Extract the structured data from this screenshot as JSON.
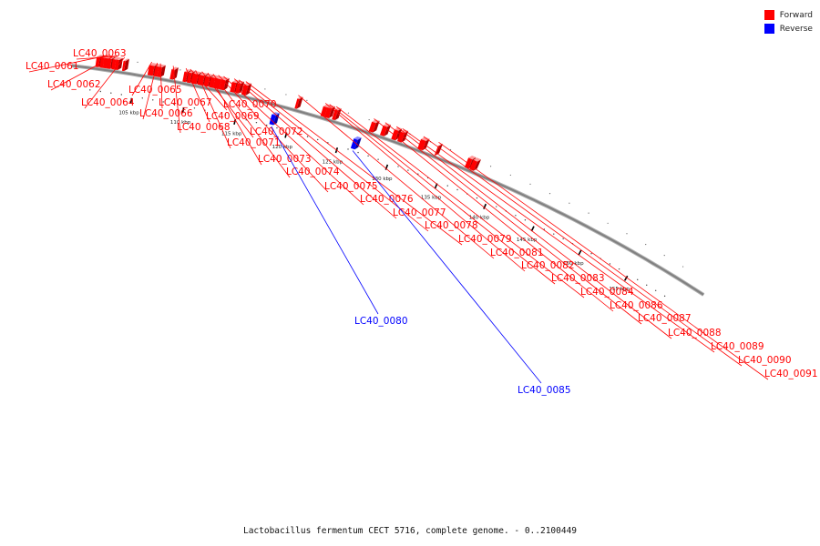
{
  "caption": "Lactobacillus fermentum CECT 5716, complete genome. - 0..2100449",
  "legend": [
    {
      "label": "Forward",
      "color": "#ff0000"
    },
    {
      "label": "Reverse",
      "color": "#0000ff"
    }
  ],
  "colors": {
    "forward": "#ff0000",
    "reverse": "#0000ff",
    "backbone": "#808080"
  },
  "tick_labels": [
    {
      "text": "105 kbp",
      "kbp": 105
    },
    {
      "text": "110 kbp",
      "kbp": 110
    },
    {
      "text": "115 kbp",
      "kbp": 115
    },
    {
      "text": "120 kbp",
      "kbp": 120
    },
    {
      "text": "125 kbp",
      "kbp": 125
    },
    {
      "text": "130 kbp",
      "kbp": 130
    },
    {
      "text": "135 kbp",
      "kbp": 135
    },
    {
      "text": "140 kbp",
      "kbp": 140
    },
    {
      "text": "145 kbp",
      "kbp": 145
    },
    {
      "text": "150 kbp",
      "kbp": 150
    },
    {
      "text": "155 kbp",
      "kbp": 155
    }
  ],
  "genes": [
    {
      "label": "LC40_0061",
      "strand": "forward",
      "start_kbp": 102.2,
      "end_kbp": 102.6
    },
    {
      "label": "LC40_0062",
      "strand": "forward",
      "start_kbp": 102.7,
      "end_kbp": 103.0
    },
    {
      "label": "LC40_0063",
      "strand": "forward",
      "start_kbp": 103.0,
      "end_kbp": 103.3
    },
    {
      "label": "LC40_0064",
      "strand": "forward",
      "start_kbp": 103.7,
      "end_kbp": 103.9
    },
    {
      "label": "LC40_0065",
      "strand": "forward",
      "start_kbp": 106.1,
      "end_kbp": 106.6
    },
    {
      "label": "LC40_0066",
      "strand": "forward",
      "start_kbp": 106.7,
      "end_kbp": 107.0
    },
    {
      "label": "LC40_0067",
      "strand": "forward",
      "start_kbp": 107.0,
      "end_kbp": 107.3
    },
    {
      "label": "LC40_0068",
      "strand": "forward",
      "start_kbp": 108.2,
      "end_kbp": 108.5
    },
    {
      "label": "LC40_0069",
      "strand": "forward",
      "start_kbp": 109.4,
      "end_kbp": 109.7
    },
    {
      "label": "LC40_0070",
      "strand": "forward",
      "start_kbp": 109.8,
      "end_kbp": 110.1
    },
    {
      "label": "LC40_0071",
      "strand": "forward",
      "start_kbp": 110.2,
      "end_kbp": 110.7
    },
    {
      "label": "LC40_0072",
      "strand": "forward",
      "start_kbp": 110.8,
      "end_kbp": 111.3
    },
    {
      "label": "LC40_0073",
      "strand": "forward",
      "start_kbp": 111.4,
      "end_kbp": 111.8
    },
    {
      "label": "LC40_0074",
      "strand": "forward",
      "start_kbp": 111.9,
      "end_kbp": 112.3
    },
    {
      "label": "LC40_0075",
      "strand": "forward",
      "start_kbp": 112.3,
      "end_kbp": 112.9
    },
    {
      "label": "LC40_0076",
      "strand": "forward",
      "start_kbp": 112.9,
      "end_kbp": 113.3
    },
    {
      "label": "LC40_0077",
      "strand": "forward",
      "start_kbp": 113.9,
      "end_kbp": 114.3
    },
    {
      "label": "LC40_0078",
      "strand": "forward",
      "start_kbp": 114.4,
      "end_kbp": 114.7
    },
    {
      "label": "LC40_0079",
      "strand": "forward",
      "start_kbp": 115.0,
      "end_kbp": 115.4
    },
    {
      "label": "LC40_0080",
      "strand": "reverse",
      "start_kbp": 118.2,
      "end_kbp": 118.6
    },
    {
      "label": "LC40_0081",
      "strand": "forward",
      "start_kbp": 120.1,
      "end_kbp": 120.3
    },
    {
      "label": "LC40_0082",
      "strand": "forward",
      "start_kbp": 122.6,
      "end_kbp": 123.0
    },
    {
      "label": "LC40_0083",
      "strand": "forward",
      "start_kbp": 123.0,
      "end_kbp": 123.4
    },
    {
      "label": "LC40_0084",
      "strand": "forward",
      "start_kbp": 123.7,
      "end_kbp": 124.0
    },
    {
      "label": "LC40_0085",
      "strand": "reverse",
      "start_kbp": 126.2,
      "end_kbp": 126.6
    },
    {
      "label": "LC40_0086",
      "strand": "forward",
      "start_kbp": 127.3,
      "end_kbp": 127.7
    },
    {
      "label": "LC40_0087",
      "strand": "forward",
      "start_kbp": 128.4,
      "end_kbp": 128.8
    },
    {
      "label": "LC40_0088",
      "strand": "forward",
      "start_kbp": 129.5,
      "end_kbp": 129.9
    },
    {
      "label": "LC40_0089",
      "strand": "forward",
      "start_kbp": 130.1,
      "end_kbp": 130.5
    },
    {
      "label": "LC40_0090",
      "strand": "forward",
      "start_kbp": 132.1,
      "end_kbp": 132.6
    },
    {
      "label": "LC40_0091",
      "strand": "forward",
      "start_kbp": 133.8,
      "end_kbp": 133.9
    }
  ],
  "unlabeled_genes": [
    {
      "strand": "forward",
      "start_kbp": 101.2,
      "end_kbp": 101.5
    },
    {
      "strand": "forward",
      "start_kbp": 101.6,
      "end_kbp": 101.9
    },
    {
      "strand": "forward",
      "start_kbp": 101.9,
      "end_kbp": 102.2
    },
    {
      "strand": "forward",
      "start_kbp": 136.8,
      "end_kbp": 137.2
    },
    {
      "strand": "forward",
      "start_kbp": 137.3,
      "end_kbp": 137.7
    }
  ]
}
